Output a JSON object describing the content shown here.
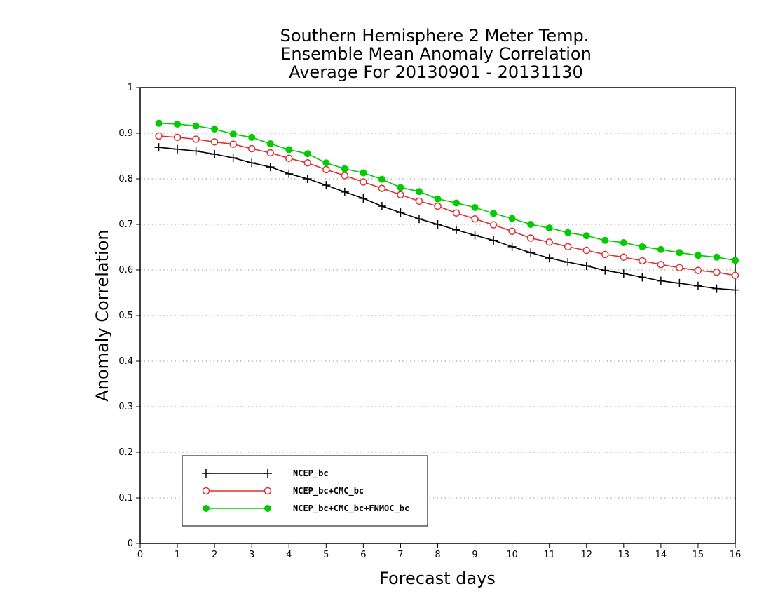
{
  "chart_data": {
    "type": "line",
    "title": [
      "Southern Hemisphere 2 Meter Temp.",
      "Ensemble Mean Anomaly Correlation",
      "Average For 20130901 - 20131130"
    ],
    "xlabel": "Forecast days",
    "ylabel": "Anomaly Correlation",
    "xlim": [
      0,
      16
    ],
    "ylim": [
      0,
      1
    ],
    "xticks": [
      "0",
      "1",
      "2",
      "3",
      "4",
      "5",
      "6",
      "7",
      "8",
      "9",
      "10",
      "11",
      "12",
      "13",
      "14",
      "15",
      "16"
    ],
    "yticks": [
      "0",
      "0.1",
      "0.2",
      "0.3",
      "0.4",
      "0.5",
      "0.6",
      "0.7",
      "0.8",
      "0.9",
      "1"
    ],
    "grid": true,
    "legend_position": "bottom-left",
    "x": [
      0.5,
      1,
      1.5,
      2,
      2.5,
      3,
      3.5,
      4,
      4.5,
      5,
      5.5,
      6,
      6.5,
      7,
      7.5,
      8,
      8.5,
      9,
      9.5,
      10,
      10.5,
      11,
      11.5,
      12,
      12.5,
      13,
      13.5,
      14,
      14.5,
      15,
      15.5,
      16
    ],
    "series": [
      {
        "name": "NCEP_bc",
        "color": "#000000",
        "marker": "plus",
        "values": [
          0.869,
          0.865,
          0.861,
          0.854,
          0.846,
          0.835,
          0.826,
          0.811,
          0.8,
          0.786,
          0.771,
          0.757,
          0.74,
          0.726,
          0.712,
          0.7,
          0.688,
          0.676,
          0.665,
          0.651,
          0.638,
          0.626,
          0.617,
          0.609,
          0.599,
          0.592,
          0.584,
          0.576,
          0.571,
          0.565,
          0.559,
          0.556
        ]
      },
      {
        "name": "NCEP_bc+CMC_bc",
        "color": "#e03030",
        "marker": "open-circle",
        "values": [
          0.894,
          0.891,
          0.887,
          0.881,
          0.876,
          0.866,
          0.857,
          0.845,
          0.835,
          0.82,
          0.807,
          0.793,
          0.779,
          0.765,
          0.751,
          0.74,
          0.725,
          0.712,
          0.699,
          0.685,
          0.67,
          0.661,
          0.651,
          0.643,
          0.634,
          0.628,
          0.62,
          0.612,
          0.605,
          0.599,
          0.595,
          0.588
        ]
      },
      {
        "name": "NCEP_bc+CMC_bc+FNMOC_bc",
        "color": "#00cc00",
        "marker": "filled-circle",
        "values": [
          0.922,
          0.92,
          0.916,
          0.909,
          0.898,
          0.891,
          0.877,
          0.864,
          0.855,
          0.835,
          0.822,
          0.813,
          0.799,
          0.781,
          0.772,
          0.756,
          0.747,
          0.737,
          0.724,
          0.713,
          0.7,
          0.692,
          0.682,
          0.675,
          0.665,
          0.66,
          0.651,
          0.645,
          0.638,
          0.632,
          0.628,
          0.621
        ]
      }
    ]
  }
}
